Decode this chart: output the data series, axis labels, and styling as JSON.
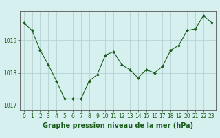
{
  "hours": [
    0,
    1,
    2,
    3,
    4,
    5,
    6,
    7,
    8,
    9,
    10,
    11,
    12,
    13,
    14,
    15,
    16,
    17,
    18,
    19,
    20,
    21,
    22,
    23
  ],
  "pressure": [
    1019.55,
    1019.3,
    1018.7,
    1018.25,
    1017.75,
    1017.2,
    1017.2,
    1017.2,
    1017.75,
    1017.95,
    1018.55,
    1018.65,
    1018.25,
    1018.1,
    1017.85,
    1018.1,
    1018.0,
    1018.2,
    1018.7,
    1018.85,
    1019.3,
    1019.35,
    1019.75,
    1019.55
  ],
  "ylim": [
    1016.85,
    1019.9
  ],
  "yticks": [
    1017,
    1018,
    1019
  ],
  "xlabel": "Graphe pression niveau de la mer (hPa)",
  "line_color": "#1a5c1a",
  "marker_color": "#1a5c1a",
  "bg_color": "#d6f0f0",
  "grid_color": "#b0cccc",
  "axis_color": "#555555",
  "label_color": "#1a5c1a",
  "xlabel_fontsize": 7.0,
  "tick_fontsize": 5.5
}
